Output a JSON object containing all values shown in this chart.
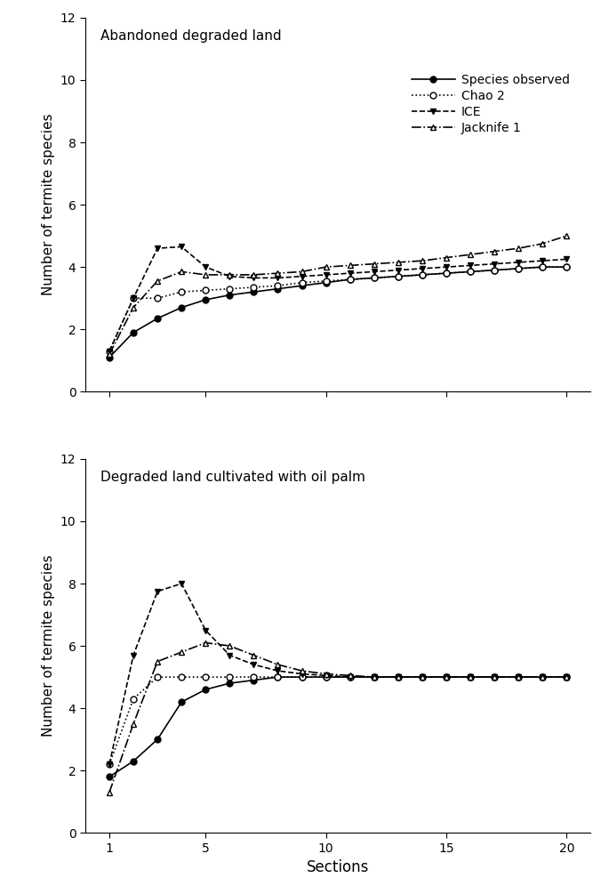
{
  "plot1_title": "Abandoned degraded land",
  "plot2_title": "Degraded land cultivated with oil palm",
  "xlabel": "Sections",
  "ylabel": "Number of termite species",
  "ylim": [
    0,
    12
  ],
  "yticks": [
    0,
    2,
    4,
    6,
    8,
    10,
    12
  ],
  "xticks": [
    1,
    5,
    10,
    15,
    20
  ],
  "legend_labels": [
    "Species observed",
    "Chao 2",
    "ICE",
    "Jacknife 1"
  ],
  "plot1": {
    "sections": [
      1,
      2,
      3,
      4,
      5,
      6,
      7,
      8,
      9,
      10,
      11,
      12,
      13,
      14,
      15,
      16,
      17,
      18,
      19,
      20
    ],
    "species_observed": [
      1.1,
      1.9,
      2.35,
      2.7,
      2.95,
      3.1,
      3.2,
      3.3,
      3.4,
      3.5,
      3.6,
      3.65,
      3.7,
      3.75,
      3.8,
      3.85,
      3.9,
      3.95,
      4.0,
      4.0
    ],
    "chao2": [
      1.3,
      3.0,
      3.0,
      3.2,
      3.25,
      3.3,
      3.35,
      3.4,
      3.5,
      3.55,
      3.6,
      3.65,
      3.7,
      3.75,
      3.8,
      3.85,
      3.9,
      3.95,
      4.0,
      4.0
    ],
    "ice": [
      1.3,
      3.0,
      4.6,
      4.65,
      4.0,
      3.7,
      3.65,
      3.65,
      3.7,
      3.75,
      3.8,
      3.85,
      3.9,
      3.95,
      4.0,
      4.05,
      4.1,
      4.15,
      4.2,
      4.25
    ],
    "jackknife1": [
      1.2,
      2.7,
      3.55,
      3.85,
      3.75,
      3.75,
      3.75,
      3.8,
      3.85,
      4.0,
      4.05,
      4.1,
      4.15,
      4.2,
      4.3,
      4.4,
      4.5,
      4.6,
      4.75,
      5.0
    ]
  },
  "plot2": {
    "sections": [
      1,
      2,
      3,
      4,
      5,
      6,
      7,
      8,
      9,
      10,
      11,
      12,
      13,
      14,
      15,
      16,
      17,
      18,
      19,
      20
    ],
    "species_observed": [
      1.8,
      2.3,
      3.0,
      4.2,
      4.6,
      4.8,
      4.9,
      5.0,
      5.0,
      5.0,
      5.0,
      5.0,
      5.0,
      5.0,
      5.0,
      5.0,
      5.0,
      5.0,
      5.0,
      5.0
    ],
    "chao2": [
      2.2,
      4.3,
      5.0,
      5.0,
      5.0,
      5.0,
      5.0,
      5.0,
      5.0,
      5.0,
      5.0,
      5.0,
      5.0,
      5.0,
      5.0,
      5.0,
      5.0,
      5.0,
      5.0,
      5.0
    ],
    "ice": [
      2.2,
      5.7,
      7.75,
      8.0,
      6.5,
      5.7,
      5.4,
      5.2,
      5.1,
      5.05,
      5.0,
      5.0,
      5.0,
      5.0,
      5.0,
      5.0,
      5.0,
      5.0,
      5.0,
      5.0
    ],
    "jackknife1": [
      1.3,
      3.5,
      5.5,
      5.8,
      6.1,
      6.0,
      5.7,
      5.4,
      5.2,
      5.1,
      5.05,
      5.0,
      5.0,
      5.0,
      5.0,
      5.0,
      5.0,
      5.0,
      5.0,
      5.0
    ]
  },
  "line_styles": {
    "species_observed": {
      "linestyle": "-",
      "marker": "o",
      "markerfacecolor": "black",
      "markersize": 5,
      "color": "black"
    },
    "chao2": {
      "linestyle": ":",
      "marker": "o",
      "markerfacecolor": "white",
      "markersize": 5,
      "color": "black"
    },
    "ice": {
      "linestyle": "--",
      "marker": "v",
      "markerfacecolor": "black",
      "markersize": 5,
      "color": "black"
    },
    "jackknife1": {
      "linestyle": "-.",
      "marker": "^",
      "markerfacecolor": "white",
      "markersize": 5,
      "color": "black"
    }
  }
}
